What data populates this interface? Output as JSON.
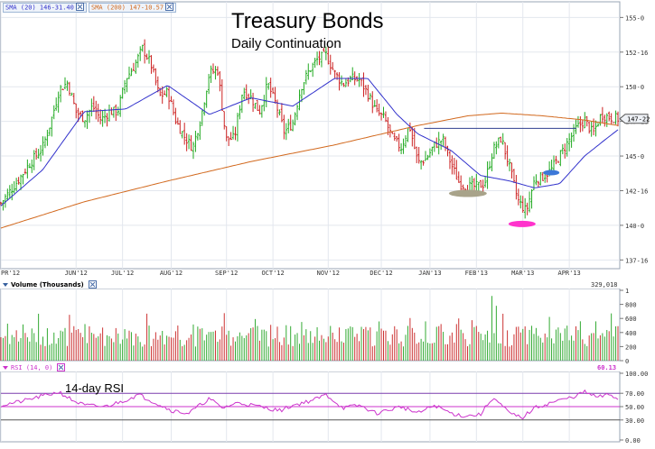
{
  "chart_data": [
    {
      "type": "candlestick",
      "title": "Treasury Bonds",
      "subtitle": "Daily Continuation",
      "price_axis_ticks": [
        "155-0",
        "152-16",
        "150-0",
        "147-16",
        "145-0",
        "142-16",
        "140-0",
        "137-16"
      ],
      "price_axis_values": [
        155.0,
        152.5,
        150.0,
        147.5,
        145.0,
        142.5,
        140.0,
        137.5
      ],
      "ylim": [
        137.0,
        156.0
      ],
      "last_price_label": "147-22",
      "last_price": 147.69,
      "x_tick_labels": [
        "PR'12",
        "JUN'12",
        "JUL'12",
        "AUG'12",
        "SEP'12",
        "OCT'12",
        "NOV'12",
        "DEC'12",
        "JAN'13",
        "FEB'13",
        "MAR'13",
        "APR'13"
      ],
      "x_tick_index": [
        0,
        34,
        55,
        77,
        102,
        123,
        148,
        172,
        194,
        215,
        236,
        257
      ],
      "bar_count": 280,
      "series": [
        {
          "name": "SMA (20)",
          "legend_text": "SMA (20) 146-31.40",
          "color": "#3333cc"
        },
        {
          "name": "SMA (200)",
          "legend_text": "SMA (200) 147-10.57",
          "color": "#d2691e"
        }
      ],
      "close_path": [
        [
          0,
          141.6
        ],
        [
          8,
          143.2
        ],
        [
          14,
          144.5
        ],
        [
          20,
          145.6
        ],
        [
          24,
          147.5
        ],
        [
          28,
          149.8
        ],
        [
          32,
          150.3
        ],
        [
          36,
          148.2
        ],
        [
          40,
          147.7
        ],
        [
          44,
          148.6
        ],
        [
          48,
          147.6
        ],
        [
          52,
          148.2
        ],
        [
          56,
          148.2
        ],
        [
          60,
          150.6
        ],
        [
          64,
          151.5
        ],
        [
          68,
          152.8
        ],
        [
          72,
          151.6
        ],
        [
          76,
          149.3
        ],
        [
          80,
          149.6
        ],
        [
          84,
          147.5
        ],
        [
          88,
          146.4
        ],
        [
          92,
          145.6
        ],
        [
          96,
          147.8
        ],
        [
          100,
          151.0
        ],
        [
          104,
          151.2
        ],
        [
          108,
          146.2
        ],
        [
          112,
          146.3
        ],
        [
          116,
          149.8
        ],
        [
          120,
          149.2
        ],
        [
          124,
          148.2
        ],
        [
          128,
          150.2
        ],
        [
          132,
          148.7
        ],
        [
          136,
          146.7
        ],
        [
          140,
          147.4
        ],
        [
          144,
          150.0
        ],
        [
          148,
          151.2
        ],
        [
          152,
          152.0
        ],
        [
          156,
          152.3
        ],
        [
          160,
          151.0
        ],
        [
          164,
          150.2
        ],
        [
          168,
          150.6
        ],
        [
          172,
          150.5
        ],
        [
          176,
          149.5
        ],
        [
          180,
          148.2
        ],
        [
          184,
          147.7
        ],
        [
          188,
          146.2
        ],
        [
          192,
          145.6
        ],
        [
          196,
          147.2
        ],
        [
          200,
          144.5
        ],
        [
          204,
          144.8
        ],
        [
          208,
          145.8
        ],
        [
          212,
          146.2
        ],
        [
          216,
          144.4
        ],
        [
          220,
          143.0
        ],
        [
          224,
          142.8
        ],
        [
          228,
          142.8
        ],
        [
          232,
          143.0
        ],
        [
          236,
          145.4
        ],
        [
          240,
          146.3
        ],
        [
          244,
          144.2
        ],
        [
          248,
          141.8
        ],
        [
          252,
          141.0
        ],
        [
          256,
          143.3
        ],
        [
          260,
          143.5
        ],
        [
          264,
          144.0
        ],
        [
          268,
          145.0
        ],
        [
          272,
          146.0
        ],
        [
          276,
          147.0
        ],
        [
          280,
          147.6
        ],
        [
          284,
          146.6
        ],
        [
          288,
          148.0
        ],
        [
          292,
          147.8
        ],
        [
          296,
          147.7
        ]
      ],
      "sma20_path": [
        [
          0,
          141.4
        ],
        [
          20,
          144.0
        ],
        [
          40,
          148.2
        ],
        [
          60,
          148.4
        ],
        [
          80,
          150.1
        ],
        [
          100,
          148.0
        ],
        [
          120,
          149.2
        ],
        [
          140,
          148.6
        ],
        [
          160,
          150.6
        ],
        [
          176,
          150.6
        ],
        [
          190,
          148.0
        ],
        [
          200,
          146.6
        ],
        [
          216,
          145.4
        ],
        [
          230,
          143.6
        ],
        [
          244,
          143.2
        ],
        [
          256,
          142.7
        ],
        [
          268,
          143.0
        ],
        [
          280,
          145.0
        ],
        [
          290,
          146.2
        ],
        [
          296,
          146.9
        ]
      ],
      "sma200_path": [
        [
          0,
          139.8
        ],
        [
          40,
          141.7
        ],
        [
          80,
          143.2
        ],
        [
          120,
          144.6
        ],
        [
          160,
          145.8
        ],
        [
          200,
          147.2
        ],
        [
          224,
          147.9
        ],
        [
          240,
          148.1
        ],
        [
          260,
          147.9
        ],
        [
          280,
          147.6
        ],
        [
          296,
          147.2
        ]
      ],
      "horizontal_line": {
        "value": 147.0,
        "from_index": 203,
        "to_index": 276
      },
      "ellipse_markers": [
        {
          "name": "feb-low-marker",
          "center_index": 224,
          "value": 142.3,
          "color": "#a8a38a"
        },
        {
          "name": "mar-low-marker",
          "center_index": 250,
          "value": 140.1,
          "color": "#ff33cc"
        },
        {
          "name": "apr-marker",
          "center_index": 264,
          "value": 143.8,
          "color": "#3c78d8"
        }
      ]
    },
    {
      "type": "bar",
      "title": "Volume (Thousands)",
      "last_value": "329,018",
      "axis_ticks": [
        "1",
        "800",
        "600",
        "400",
        "200",
        "0"
      ],
      "axis_values": [
        1000,
        800,
        600,
        400,
        200,
        0
      ],
      "ylim": [
        0,
        1000
      ],
      "notable_values": [
        {
          "index": 220,
          "value": 600
        },
        {
          "index": 236,
          "value": 920
        },
        {
          "index": 238,
          "value": 780
        }
      ],
      "typical_range": [
        200,
        500
      ]
    },
    {
      "type": "line",
      "title": "RSI (14, 0)",
      "annotation": "14-day RSI",
      "last_value": "60.13",
      "axis_ticks": [
        "100.00",
        "70.00",
        "50.00",
        "30.00",
        "0.00"
      ],
      "axis_values": [
        100,
        70,
        50,
        30,
        0
      ],
      "ylim": [
        0,
        100
      ],
      "reference_lines": [
        70,
        50,
        30
      ],
      "rsi_path": [
        [
          0,
          52
        ],
        [
          10,
          58
        ],
        [
          20,
          66
        ],
        [
          28,
          72
        ],
        [
          34,
          60
        ],
        [
          40,
          52
        ],
        [
          50,
          50
        ],
        [
          60,
          60
        ],
        [
          66,
          68
        ],
        [
          74,
          56
        ],
        [
          82,
          44
        ],
        [
          90,
          40
        ],
        [
          100,
          62
        ],
        [
          106,
          48
        ],
        [
          114,
          56
        ],
        [
          124,
          50
        ],
        [
          134,
          44
        ],
        [
          140,
          52
        ],
        [
          150,
          60
        ],
        [
          156,
          68
        ],
        [
          164,
          48
        ],
        [
          172,
          52
        ],
        [
          180,
          40
        ],
        [
          192,
          50
        ],
        [
          200,
          40
        ],
        [
          208,
          52
        ],
        [
          216,
          40
        ],
        [
          222,
          36
        ],
        [
          230,
          38
        ],
        [
          236,
          64
        ],
        [
          244,
          40
        ],
        [
          250,
          33
        ],
        [
          256,
          48
        ],
        [
          266,
          58
        ],
        [
          274,
          64
        ],
        [
          280,
          72
        ],
        [
          286,
          64
        ],
        [
          292,
          68
        ],
        [
          296,
          62
        ]
      ]
    }
  ]
}
